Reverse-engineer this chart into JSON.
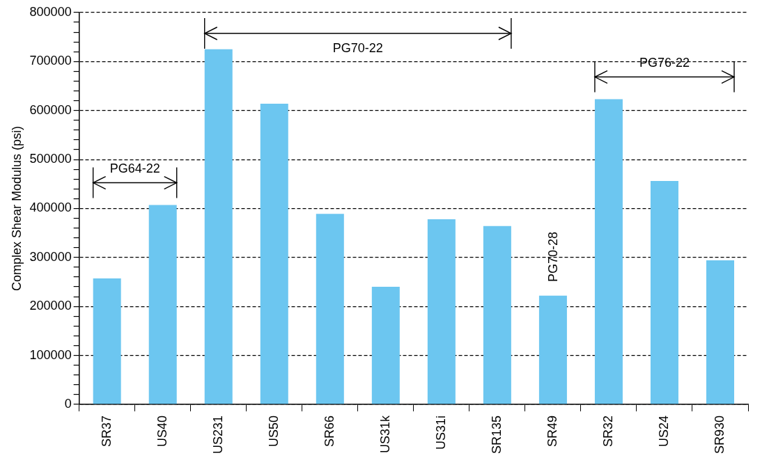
{
  "chart_data": {
    "type": "bar",
    "ylabel": "Complex Shear Modulus (psi)",
    "categories": [
      "SR37",
      "US40",
      "US231",
      "US50",
      "SR66",
      "US31k",
      "US31i",
      "SR135",
      "SR49",
      "SR32",
      "US24",
      "SR930"
    ],
    "values": [
      257000,
      407000,
      725000,
      614000,
      389000,
      240000,
      378000,
      364000,
      222000,
      623000,
      456000,
      294000
    ],
    "color": "#6cc6f0",
    "ylim": [
      0,
      800000
    ],
    "yticks": [
      0,
      {
        "value": 20000,
        "label": null
      },
      {
        "value": 40000,
        "label": null
      },
      {
        "value": 60000,
        "label": null
      },
      {
        "value": 80000,
        "label": null
      },
      100000,
      {
        "value": 120000,
        "label": null
      },
      {
        "value": 140000,
        "label": null
      },
      {
        "value": 160000,
        "label": null
      },
      {
        "value": 180000,
        "label": null
      },
      200000,
      {
        "value": 220000,
        "label": null
      },
      {
        "value": 240000,
        "label": null
      },
      {
        "value": 260000,
        "label": null
      },
      {
        "value": 280000,
        "label": null
      },
      300000,
      {
        "value": 320000,
        "label": null
      },
      {
        "value": 340000,
        "label": null
      },
      {
        "value": 360000,
        "label": null
      },
      {
        "value": 380000,
        "label": null
      },
      400000,
      {
        "value": 420000,
        "label": null
      },
      {
        "value": 440000,
        "label": null
      },
      {
        "value": 460000,
        "label": null
      },
      {
        "value": 480000,
        "label": null
      },
      500000,
      {
        "value": 520000,
        "label": null
      },
      {
        "value": 540000,
        "label": null
      },
      {
        "value": 560000,
        "label": null
      },
      {
        "value": 580000,
        "label": null
      },
      600000,
      {
        "value": 620000,
        "label": null
      },
      {
        "value": 640000,
        "label": null
      },
      {
        "value": 660000,
        "label": null
      },
      {
        "value": 680000,
        "label": null
      },
      700000,
      {
        "value": 720000,
        "label": null
      },
      {
        "value": 740000,
        "label": null
      },
      {
        "value": 760000,
        "label": null
      },
      {
        "value": 780000,
        "label": null
      },
      800000
    ],
    "grid": "y",
    "annotations": [
      "PG64-22",
      "PG70-22",
      "PG76-22",
      "PG70-28"
    ]
  }
}
